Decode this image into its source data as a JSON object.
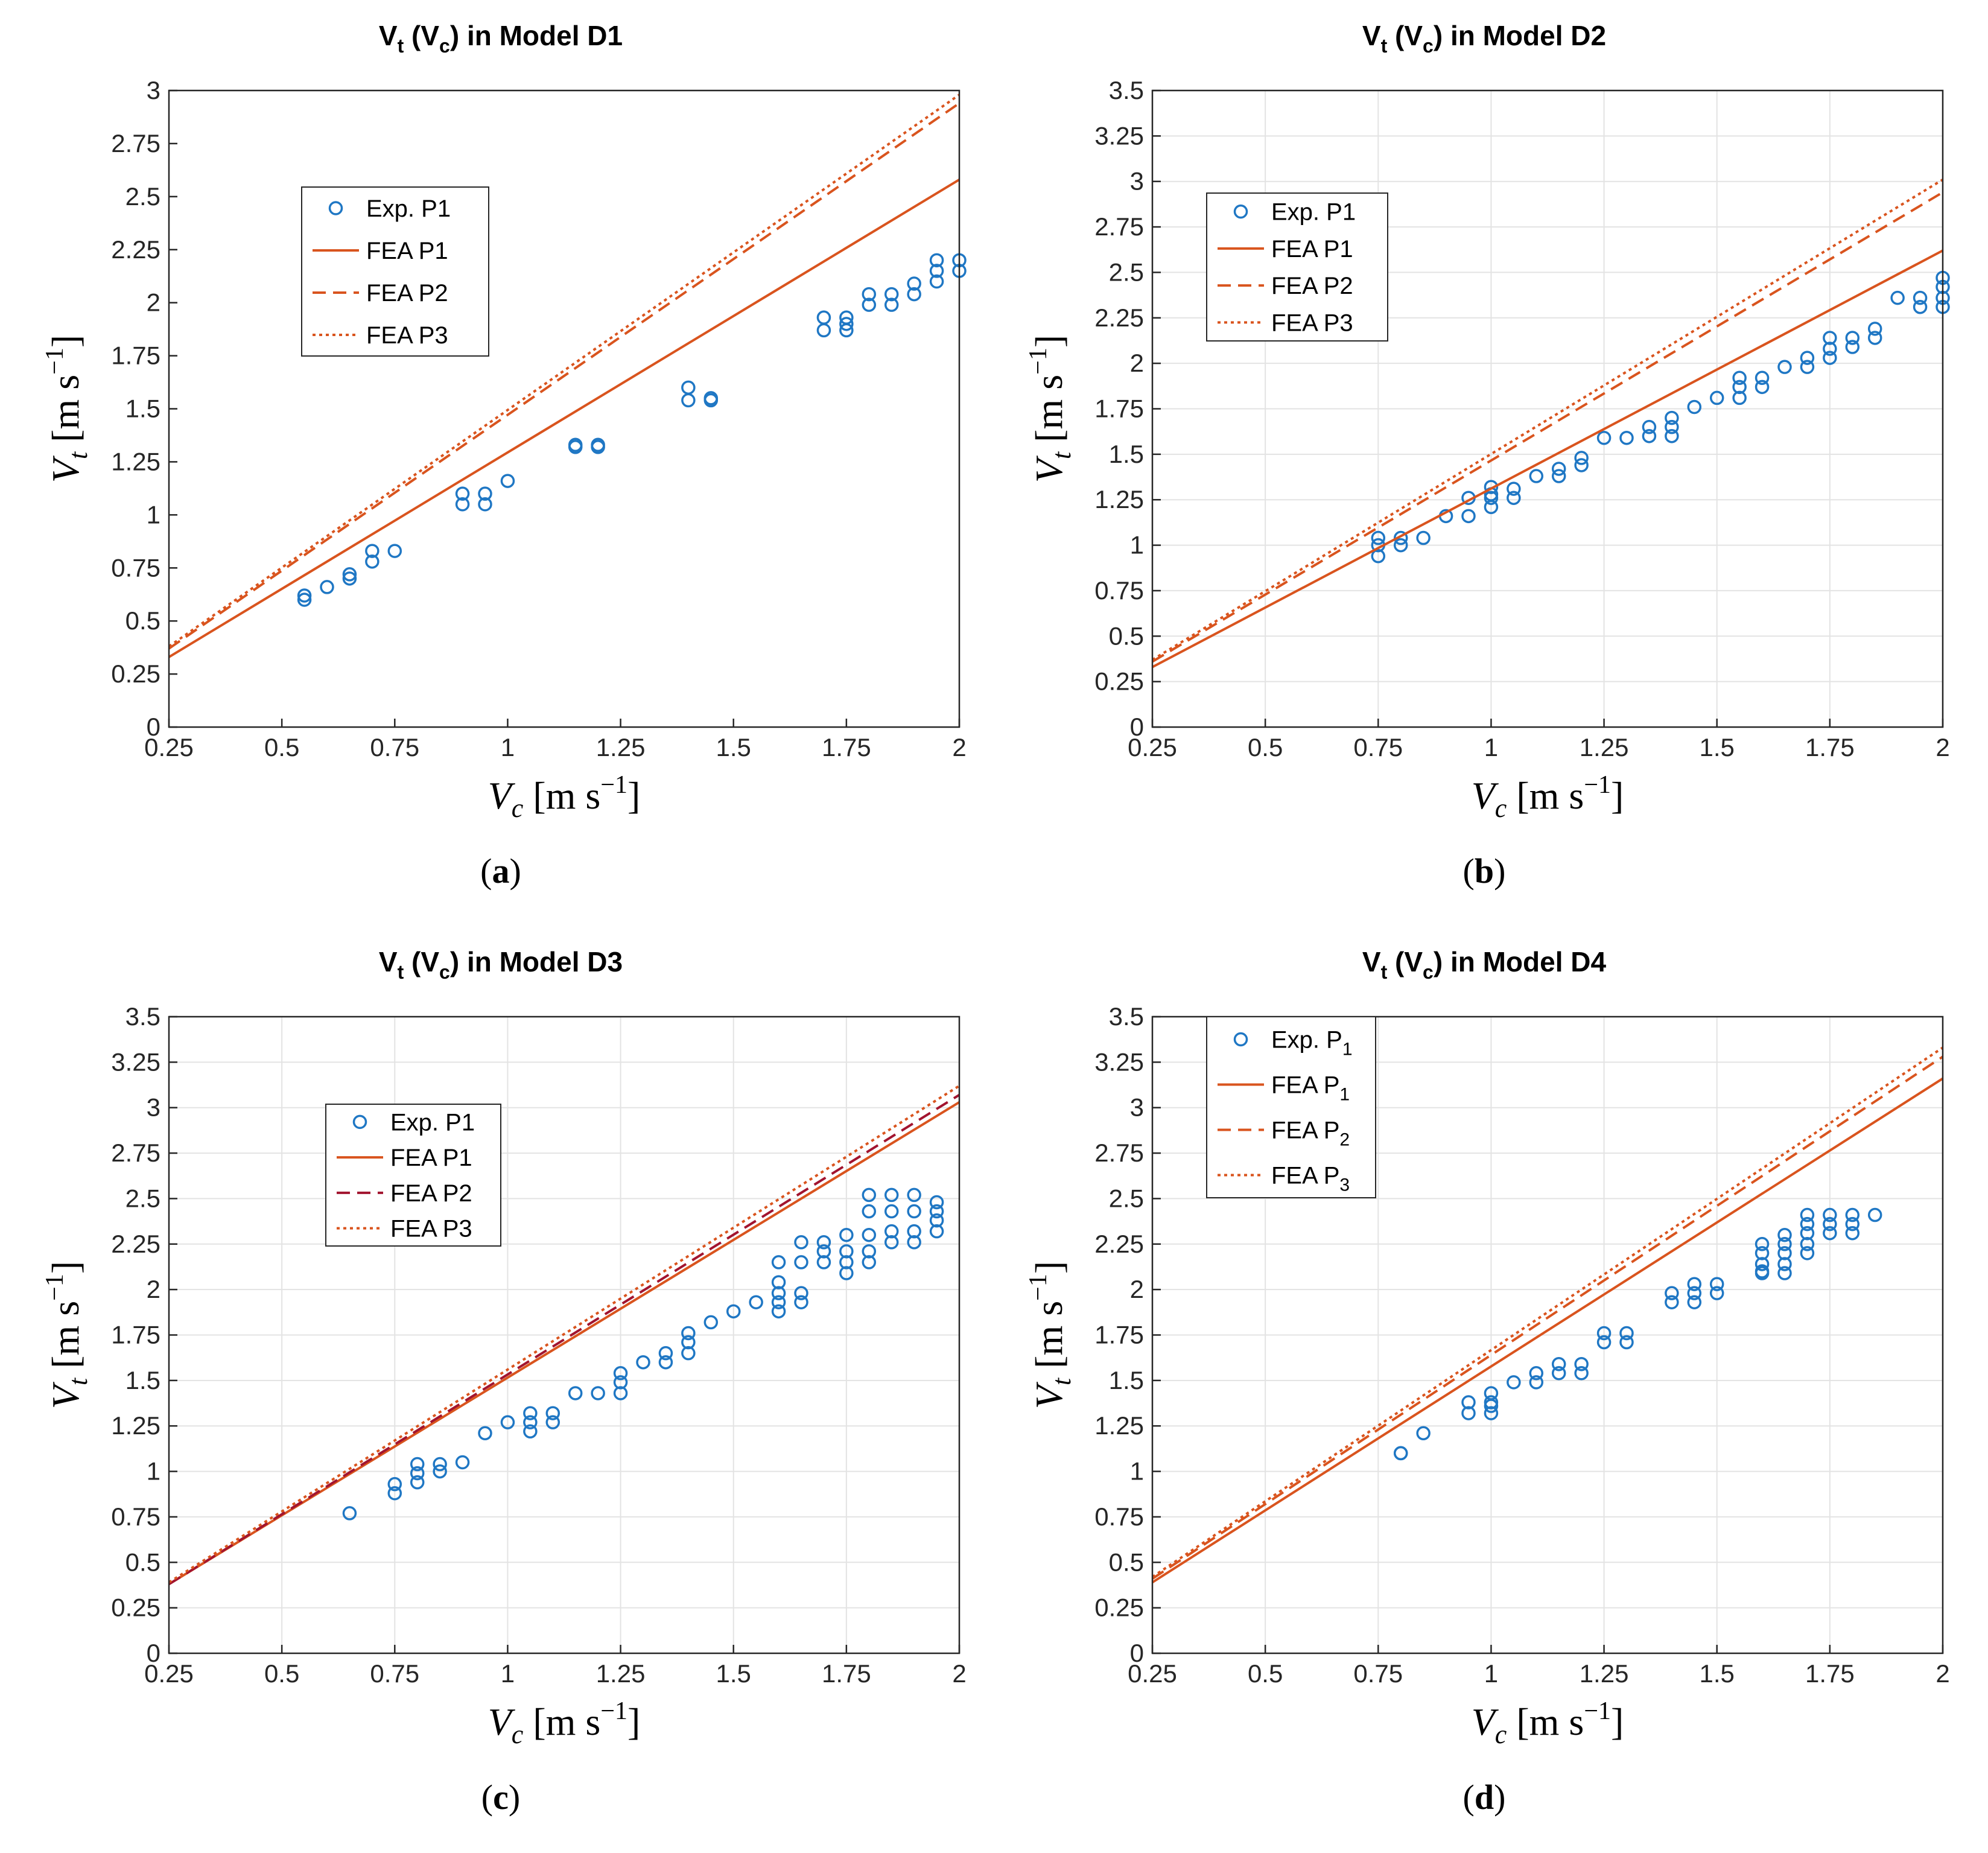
{
  "chart_data": [
    {
      "type": "scatter",
      "title": "Vt (Vc) in Model D1",
      "title_main": "V",
      "title_sub1": "t",
      "title_mid": " (V",
      "title_sub2": "c",
      "title_end": ") in Model D1",
      "caption_letter": "a",
      "xlabel": "Vc [m s−1]",
      "ylabel": "Vt [m s−1]",
      "xlim": [
        0.25,
        2
      ],
      "ylim": [
        0,
        3
      ],
      "xticks": [
        "0.25",
        "0.5",
        "0.75",
        "1",
        "1.25",
        "1.5",
        "1.75",
        "2"
      ],
      "yticks": [
        "0",
        "0.25",
        "0.5",
        "0.75",
        "1",
        "1.25",
        "1.5",
        "1.75",
        "2",
        "2.25",
        "2.5",
        "2.75",
        "3"
      ],
      "grid": false,
      "legend_position": "upper-left",
      "legend": [
        "Exp. P1",
        "FEA P1",
        "FEA P2",
        "FEA P3"
      ],
      "series": [
        {
          "name": "Exp. P1",
          "kind": "scatter",
          "x": [
            0.55,
            0.55,
            0.6,
            0.65,
            0.65,
            0.7,
            0.7,
            0.75,
            0.9,
            0.9,
            0.95,
            0.95,
            1.0,
            1.15,
            1.15,
            1.2,
            1.2,
            1.4,
            1.4,
            1.45,
            1.45,
            1.7,
            1.7,
            1.75,
            1.75,
            1.75,
            1.8,
            1.8,
            1.85,
            1.85,
            1.9,
            1.9,
            1.95,
            1.95,
            1.95,
            2.0,
            2.0
          ],
          "y": [
            0.6,
            0.62,
            0.66,
            0.7,
            0.72,
            0.78,
            0.83,
            0.83,
            1.05,
            1.1,
            1.05,
            1.1,
            1.16,
            1.32,
            1.33,
            1.32,
            1.33,
            1.54,
            1.6,
            1.54,
            1.55,
            1.87,
            1.93,
            1.87,
            1.9,
            1.93,
            1.99,
            2.04,
            1.99,
            2.04,
            2.04,
            2.09,
            2.1,
            2.15,
            2.2,
            2.15,
            2.2
          ]
        },
        {
          "name": "FEA P1",
          "kind": "solid",
          "x": [
            0.25,
            2.0
          ],
          "y": [
            0.33,
            2.58
          ]
        },
        {
          "name": "FEA P2",
          "kind": "dashed",
          "x": [
            0.25,
            2.0
          ],
          "y": [
            0.37,
            2.94
          ]
        },
        {
          "name": "FEA P3",
          "kind": "dotted",
          "x": [
            0.25,
            2.0
          ],
          "y": [
            0.38,
            2.98
          ]
        }
      ]
    },
    {
      "type": "scatter",
      "title": "Vt (Vc) in Model D2",
      "title_main": "V",
      "title_sub1": "t",
      "title_mid": " (V",
      "title_sub2": "c",
      "title_end": ") in Model D2",
      "caption_letter": "b",
      "xlabel": "Vc [m s−1]",
      "ylabel": "Vt [m s−1]",
      "xlim": [
        0.25,
        2
      ],
      "ylim": [
        0,
        3.5
      ],
      "xticks": [
        "0.25",
        "0.5",
        "0.75",
        "1",
        "1.25",
        "1.5",
        "1.75",
        "2"
      ],
      "yticks": [
        "0",
        "0.25",
        "0.5",
        "0.75",
        "1",
        "1.25",
        "1.5",
        "1.75",
        "2",
        "2.25",
        "2.5",
        "2.75",
        "3",
        "3.25",
        "3.5"
      ],
      "grid": true,
      "legend_position": "upper-left",
      "legend": [
        "Exp. P1",
        "FEA P1",
        "FEA P2",
        "FEA P3"
      ],
      "series": [
        {
          "name": "Exp. P1",
          "kind": "scatter",
          "x": [
            0.75,
            0.75,
            0.75,
            0.8,
            0.8,
            0.85,
            0.9,
            0.95,
            0.95,
            1.0,
            1.0,
            1.0,
            1.0,
            1.05,
            1.05,
            1.1,
            1.15,
            1.15,
            1.2,
            1.2,
            1.25,
            1.3,
            1.35,
            1.35,
            1.4,
            1.4,
            1.4,
            1.45,
            1.5,
            1.55,
            1.55,
            1.55,
            1.6,
            1.6,
            1.65,
            1.7,
            1.7,
            1.75,
            1.75,
            1.75,
            1.8,
            1.8,
            1.85,
            1.85,
            1.9,
            1.95,
            1.95,
            2.0,
            2.0,
            2.0,
            2.0
          ],
          "y": [
            0.94,
            1.0,
            1.04,
            1.0,
            1.04,
            1.04,
            1.16,
            1.16,
            1.26,
            1.21,
            1.26,
            1.28,
            1.32,
            1.26,
            1.31,
            1.38,
            1.38,
            1.42,
            1.44,
            1.48,
            1.59,
            1.59,
            1.6,
            1.65,
            1.6,
            1.65,
            1.7,
            1.76,
            1.81,
            1.81,
            1.87,
            1.92,
            1.87,
            1.92,
            1.98,
            1.98,
            2.03,
            2.03,
            2.08,
            2.14,
            2.09,
            2.14,
            2.14,
            2.19,
            2.36,
            2.31,
            2.36,
            2.31,
            2.36,
            2.42,
            2.47
          ]
        },
        {
          "name": "FEA P1",
          "kind": "solid",
          "x": [
            0.25,
            2.0
          ],
          "y": [
            0.33,
            2.62
          ]
        },
        {
          "name": "FEA P2",
          "kind": "dashed",
          "x": [
            0.25,
            2.0
          ],
          "y": [
            0.36,
            2.94
          ]
        },
        {
          "name": "FEA P3",
          "kind": "dotted",
          "x": [
            0.25,
            2.0
          ],
          "y": [
            0.37,
            3.01
          ]
        }
      ]
    },
    {
      "type": "scatter",
      "title": "Vt (Vc) in Model D3",
      "title_main": "V",
      "title_sub1": "t",
      "title_mid": " (V",
      "title_sub2": "c",
      "title_end": ") in Model D3",
      "caption_letter": "c",
      "xlabel": "Vc [m s−1]",
      "ylabel": "Vt [m s−1]",
      "xlim": [
        0.25,
        2
      ],
      "ylim": [
        0,
        3.5
      ],
      "xticks": [
        "0.25",
        "0.5",
        "0.75",
        "1",
        "1.25",
        "1.5",
        "1.75",
        "2"
      ],
      "yticks": [
        "0",
        "0.25",
        "0.5",
        "0.75",
        "1",
        "1.25",
        "1.5",
        "1.75",
        "2",
        "2.25",
        "2.5",
        "2.75",
        "3",
        "3.25",
        "3.5"
      ],
      "grid": true,
      "legend_position": "upper-left",
      "legend": [
        "Exp. P1",
        "FEA P1",
        "FEA P2",
        "FEA P3"
      ],
      "series": [
        {
          "name": "Exp. P1",
          "kind": "scatter",
          "x": [
            0.65,
            0.75,
            0.75,
            0.8,
            0.8,
            0.8,
            0.85,
            0.85,
            0.9,
            0.95,
            1.0,
            1.05,
            1.05,
            1.05,
            1.1,
            1.1,
            1.15,
            1.2,
            1.25,
            1.25,
            1.25,
            1.3,
            1.35,
            1.35,
            1.4,
            1.4,
            1.4,
            1.45,
            1.5,
            1.55,
            1.6,
            1.6,
            1.6,
            1.6,
            1.6,
            1.65,
            1.65,
            1.65,
            1.65,
            1.7,
            1.7,
            1.7,
            1.75,
            1.75,
            1.75,
            1.75,
            1.8,
            1.8,
            1.8,
            1.8,
            1.8,
            1.85,
            1.85,
            1.85,
            1.85,
            1.9,
            1.9,
            1.9,
            1.9,
            1.95,
            1.95,
            1.95,
            1.95
          ],
          "y": [
            0.77,
            0.88,
            0.93,
            0.94,
            0.99,
            1.04,
            1.0,
            1.04,
            1.05,
            1.21,
            1.27,
            1.22,
            1.27,
            1.32,
            1.27,
            1.32,
            1.43,
            1.43,
            1.43,
            1.49,
            1.54,
            1.6,
            1.6,
            1.65,
            1.65,
            1.71,
            1.76,
            1.82,
            1.88,
            1.93,
            1.88,
            1.93,
            1.98,
            2.04,
            2.15,
            1.93,
            1.98,
            2.15,
            2.26,
            2.15,
            2.21,
            2.26,
            2.09,
            2.15,
            2.21,
            2.3,
            2.15,
            2.21,
            2.3,
            2.43,
            2.52,
            2.26,
            2.32,
            2.43,
            2.52,
            2.26,
            2.32,
            2.43,
            2.52,
            2.32,
            2.38,
            2.43,
            2.48
          ]
        },
        {
          "name": "FEA P1",
          "kind": "solid",
          "x": [
            0.25,
            2.0
          ],
          "y": [
            0.38,
            3.03
          ]
        },
        {
          "name": "FEA P2",
          "kind": "dashed",
          "x": [
            0.25,
            2.0
          ],
          "y": [
            0.38,
            3.07
          ]
        },
        {
          "name": "FEA P3",
          "kind": "dotted",
          "x": [
            0.25,
            2.0
          ],
          "y": [
            0.39,
            3.12
          ]
        }
      ]
    },
    {
      "type": "scatter",
      "title": "Vt (Vc) in Model D4",
      "title_main": "V",
      "title_sub1": "t",
      "title_mid": " (V",
      "title_sub2": "c",
      "title_end": ") in Model D4",
      "caption_letter": "d",
      "xlabel": "Vc [m s−1]",
      "ylabel": "Vt [m s−1]",
      "xlim": [
        0.25,
        2
      ],
      "ylim": [
        0,
        3.5
      ],
      "xticks": [
        "0.25",
        "0.5",
        "0.75",
        "1",
        "1.25",
        "1.5",
        "1.75",
        "2"
      ],
      "yticks": [
        "0",
        "0.25",
        "0.5",
        "0.75",
        "1",
        "1.25",
        "1.5",
        "1.75",
        "2",
        "2.25",
        "2.5",
        "2.75",
        "3",
        "3.25",
        "3.5"
      ],
      "grid": true,
      "legend_position": "upper-left",
      "legend": [
        "Exp. P1",
        "FEA P1",
        "FEA P2",
        "FEA P3"
      ],
      "series": [
        {
          "name": "Exp. P1",
          "kind": "scatter",
          "x": [
            0.8,
            0.8,
            0.85,
            0.95,
            0.95,
            1.0,
            1.0,
            1.0,
            1.0,
            1.05,
            1.1,
            1.1,
            1.15,
            1.15,
            1.2,
            1.2,
            1.25,
            1.25,
            1.3,
            1.3,
            1.4,
            1.4,
            1.45,
            1.45,
            1.45,
            1.5,
            1.5,
            1.6,
            1.6,
            1.6,
            1.6,
            1.6,
            1.65,
            1.65,
            1.65,
            1.65,
            1.65,
            1.7,
            1.7,
            1.7,
            1.7,
            1.7,
            1.75,
            1.75,
            1.75,
            1.8,
            1.8,
            1.8,
            1.85
          ],
          "y": [
            1.1,
            1.1,
            1.21,
            1.32,
            1.38,
            1.32,
            1.36,
            1.38,
            1.43,
            1.49,
            1.49,
            1.54,
            1.54,
            1.59,
            1.54,
            1.59,
            1.71,
            1.76,
            1.71,
            1.76,
            1.93,
            1.98,
            1.93,
            1.98,
            2.03,
            1.98,
            2.03,
            2.09,
            2.14,
            2.2,
            2.25,
            2.1,
            2.09,
            2.14,
            2.2,
            2.25,
            2.3,
            2.2,
            2.25,
            2.31,
            2.36,
            2.41,
            2.31,
            2.36,
            2.41,
            2.31,
            2.36,
            2.41,
            2.41
          ]
        },
        {
          "name": "FEA P1",
          "kind": "solid",
          "x": [
            0.25,
            2.0
          ],
          "y": [
            0.39,
            3.16
          ]
        },
        {
          "name": "FEA P2",
          "kind": "dashed",
          "x": [
            0.25,
            2.0
          ],
          "y": [
            0.41,
            3.28
          ]
        },
        {
          "name": "FEA P3",
          "kind": "dotted",
          "x": [
            0.25,
            2.0
          ],
          "y": [
            0.42,
            3.33
          ]
        }
      ]
    }
  ],
  "legend_labels": {
    "exp": "Exp. P1",
    "fea1": "FEA P1",
    "fea2": "FEA P2",
    "fea3": "FEA P3",
    "exp_sub_base": "Exp. P",
    "fea_sub_base": "FEA P",
    "sub1": "1",
    "sub2": "2",
    "sub3": "3"
  },
  "axis_text": {
    "v": "V",
    "t_sub": "t",
    "c_sub": "c",
    "unit_open": " [m s",
    "unit_exp": "−1",
    "unit_close": "]"
  },
  "colors": {
    "marker": "#1f77c4",
    "line": "#d9541e",
    "line_d3_dashed": "#a2142f",
    "grid": "#e3e3e3",
    "axis": "#262626"
  }
}
